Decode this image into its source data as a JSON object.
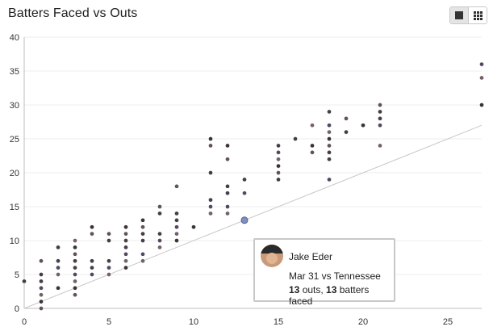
{
  "title": "Batters Faced vs Outs",
  "toggle": {
    "options": [
      "single-view-icon",
      "grid-view-icon"
    ],
    "active": 0
  },
  "colors": {
    "point_default": "#3d3338",
    "diagonal": "#c8c8c8",
    "highlight": "#7b8bbd",
    "grid": "#ececec"
  },
  "tooltip": {
    "name": "Jake Eder",
    "game": "Mar 31 vs Tennessee",
    "outs": "13",
    "outs_suffix": " outs, ",
    "batters_faced": "13",
    "bf_suffix": " batters faced"
  },
  "chart_data": {
    "type": "scatter",
    "title": "Batters Faced vs Outs",
    "xlabel": "",
    "ylabel": "",
    "xlim": [
      0,
      27
    ],
    "ylim": [
      0,
      40
    ],
    "x_ticks": [
      0,
      5,
      10,
      15,
      20,
      25
    ],
    "y_ticks": [
      0,
      5,
      10,
      15,
      20,
      25,
      30,
      35,
      40
    ],
    "grid": "horizontal",
    "reference_line": {
      "from": [
        0,
        0
      ],
      "to": [
        27,
        27
      ]
    },
    "highlighted_point": {
      "x": 13,
      "y": 13
    },
    "points": [
      [
        0,
        4
      ],
      [
        1,
        0
      ],
      [
        1,
        1
      ],
      [
        1,
        2
      ],
      [
        1,
        3
      ],
      [
        1,
        4
      ],
      [
        1,
        5
      ],
      [
        1,
        7
      ],
      [
        2,
        3
      ],
      [
        2,
        5
      ],
      [
        2,
        6
      ],
      [
        2,
        7
      ],
      [
        2,
        9
      ],
      [
        3,
        2
      ],
      [
        3,
        3
      ],
      [
        3,
        4
      ],
      [
        3,
        5
      ],
      [
        3,
        6
      ],
      [
        3,
        7
      ],
      [
        3,
        8
      ],
      [
        3,
        9
      ],
      [
        3,
        10
      ],
      [
        4,
        5
      ],
      [
        4,
        6
      ],
      [
        4,
        7
      ],
      [
        4,
        11
      ],
      [
        4,
        12
      ],
      [
        5,
        5
      ],
      [
        5,
        6
      ],
      [
        5,
        7
      ],
      [
        5,
        10
      ],
      [
        5,
        11
      ],
      [
        6,
        6
      ],
      [
        6,
        7
      ],
      [
        6,
        8
      ],
      [
        6,
        9
      ],
      [
        6,
        10
      ],
      [
        6,
        11
      ],
      [
        6,
        12
      ],
      [
        7,
        7
      ],
      [
        7,
        8
      ],
      [
        7,
        10
      ],
      [
        7,
        11
      ],
      [
        7,
        12
      ],
      [
        7,
        13
      ],
      [
        8,
        9
      ],
      [
        8,
        10
      ],
      [
        8,
        11
      ],
      [
        8,
        14
      ],
      [
        8,
        15
      ],
      [
        9,
        10
      ],
      [
        9,
        11
      ],
      [
        9,
        12
      ],
      [
        9,
        13
      ],
      [
        9,
        14
      ],
      [
        9,
        18
      ],
      [
        10,
        12
      ],
      [
        11,
        14
      ],
      [
        11,
        15
      ],
      [
        11,
        16
      ],
      [
        11,
        20
      ],
      [
        11,
        24
      ],
      [
        11,
        25
      ],
      [
        12,
        14
      ],
      [
        12,
        15
      ],
      [
        12,
        17
      ],
      [
        12,
        18
      ],
      [
        12,
        22
      ],
      [
        12,
        24
      ],
      [
        13,
        13
      ],
      [
        13,
        17
      ],
      [
        13,
        19
      ],
      [
        15,
        19
      ],
      [
        15,
        20
      ],
      [
        15,
        21
      ],
      [
        15,
        22
      ],
      [
        15,
        23
      ],
      [
        15,
        24
      ],
      [
        16,
        25
      ],
      [
        17,
        23
      ],
      [
        17,
        24
      ],
      [
        17,
        27
      ],
      [
        18,
        19
      ],
      [
        18,
        22
      ],
      [
        18,
        23
      ],
      [
        18,
        24
      ],
      [
        18,
        25
      ],
      [
        18,
        26
      ],
      [
        18,
        27
      ],
      [
        18,
        29
      ],
      [
        19,
        26
      ],
      [
        19,
        28
      ],
      [
        20,
        27
      ],
      [
        21,
        24
      ],
      [
        21,
        27
      ],
      [
        21,
        28
      ],
      [
        21,
        29
      ],
      [
        21,
        30
      ],
      [
        27,
        30
      ],
      [
        27,
        34
      ],
      [
        27,
        36
      ]
    ]
  }
}
